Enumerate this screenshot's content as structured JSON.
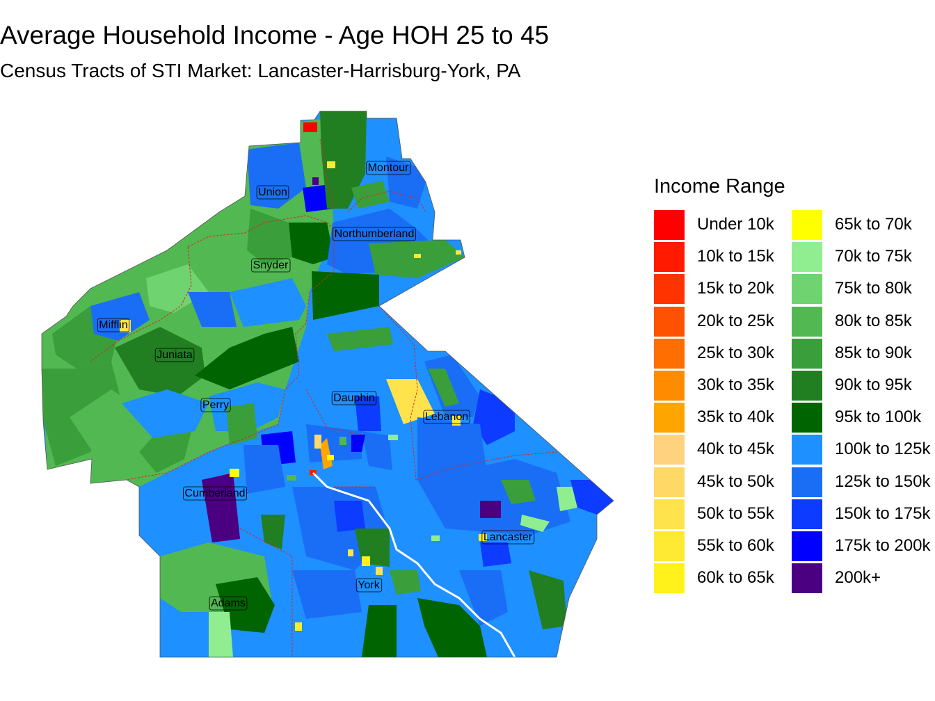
{
  "title": "Average Household Income - Age HOH 25 to 45",
  "subtitle": "Census Tracts of STI Market: Lancaster-Harrisburg-York, PA",
  "legend": {
    "title": "Income Range",
    "items": [
      {
        "label": "Under 10k",
        "color": "#FF0000"
      },
      {
        "label": "10k to 15k",
        "color": "#FF1A00"
      },
      {
        "label": "15k to 20k",
        "color": "#FF3300"
      },
      {
        "label": "20k to 25k",
        "color": "#FF5200"
      },
      {
        "label": "25k to 30k",
        "color": "#FF6E00"
      },
      {
        "label": "30k to 35k",
        "color": "#FF8C00"
      },
      {
        "label": "35k to 40k",
        "color": "#FFA500"
      },
      {
        "label": "40k to 45k",
        "color": "#FFD27F"
      },
      {
        "label": "45k to 50k",
        "color": "#FFD966"
      },
      {
        "label": "50k to 55k",
        "color": "#FFE34D"
      },
      {
        "label": "55k to 60k",
        "color": "#FFEA33"
      },
      {
        "label": "60k to 65k",
        "color": "#FFF21A"
      },
      {
        "label": "65k to 70k",
        "color": "#FFFF00"
      },
      {
        "label": "70k to 75k",
        "color": "#90EE90"
      },
      {
        "label": "75k to 80k",
        "color": "#6FD36F"
      },
      {
        "label": "80k to 85k",
        "color": "#52B852"
      },
      {
        "label": "85k to 90k",
        "color": "#3A9E3A"
      },
      {
        "label": "90k to 95k",
        "color": "#217F21"
      },
      {
        "label": "95k to 100k",
        "color": "#006400"
      },
      {
        "label": "100k to 125k",
        "color": "#1E90FF"
      },
      {
        "label": "125k to 150k",
        "color": "#1A6EF5"
      },
      {
        "label": "150k to 175k",
        "color": "#0D3BFF"
      },
      {
        "label": "175k to 200k",
        "color": "#0000FF"
      },
      {
        "label": "200k+",
        "color": "#4B0082"
      }
    ]
  },
  "counties": [
    {
      "name": "Montour"
    },
    {
      "name": "Union"
    },
    {
      "name": "Northumberland"
    },
    {
      "name": "Snyder"
    },
    {
      "name": "Mifflin"
    },
    {
      "name": "Juniata"
    },
    {
      "name": "Perry"
    },
    {
      "name": "Dauphin"
    },
    {
      "name": "Lebanon"
    },
    {
      "name": "Cumberland"
    },
    {
      "name": "Lancaster"
    },
    {
      "name": "York"
    },
    {
      "name": "Adams"
    }
  ],
  "colors": {
    "county_border": "#D62728",
    "label_border": "#000000",
    "river": "#FFFFFF"
  }
}
